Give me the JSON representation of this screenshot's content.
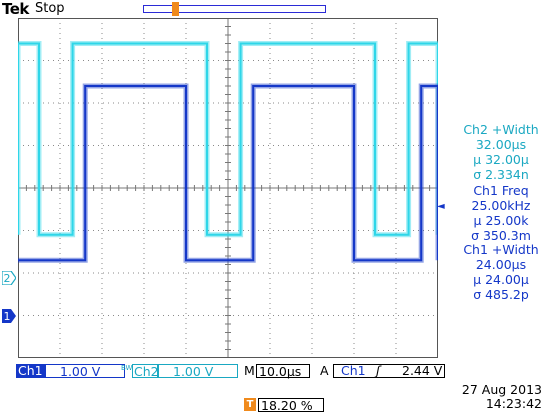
{
  "header": {
    "brand": "Tek",
    "run_status": "Stop"
  },
  "markers": {
    "trigger_position": "T",
    "ch2_marker": "2",
    "ch1_marker": "1",
    "trigger_level_marker": "◄"
  },
  "colors": {
    "ch1": "#1437c8",
    "ch2": "#2fd6e8",
    "grid": "#8a8a8a",
    "trigger": "#f08a1c"
  },
  "measurements": [
    {
      "label": "Ch2 +Width",
      "value": "32.00µs",
      "mean": "µ 32.00µ",
      "stdev": "σ 2.334n"
    },
    {
      "label": "Ch1 Freq",
      "value": "25.00kHz",
      "mean": "µ 25.00k",
      "stdev": "σ 350.3m"
    },
    {
      "label": "Ch1 +Width",
      "value": "24.00µs",
      "mean": "µ 24.00µ",
      "stdev": "σ 485.2p"
    }
  ],
  "settings": {
    "ch1_label": "Ch1",
    "ch1_scale": "1.00 V",
    "ch2_bw": "BW",
    "ch2_label": "Ch2",
    "ch2_scale": "1.00 V",
    "timebase_label": "M",
    "timebase": "10.0µs",
    "trigger_mode": "A",
    "trigger_source": "Ch1",
    "trigger_slope": "ʃ",
    "trigger_level": "2.44 V",
    "trigger_icon": "T",
    "horizontal_position": "18.20 %"
  },
  "timestamp": {
    "date": "27 Aug 2013",
    "time": "14:23:42"
  },
  "waveforms": {
    "ch1": {
      "high": 2.4,
      "low": -1.7,
      "high_start_div": 1.6,
      "width_div": 2.4,
      "period_div": 4.0
    },
    "ch2": {
      "high": 3.4,
      "low": -1.1,
      "rise_div": 1.3,
      "width_div": 3.2,
      "period_div": 4.0
    }
  }
}
